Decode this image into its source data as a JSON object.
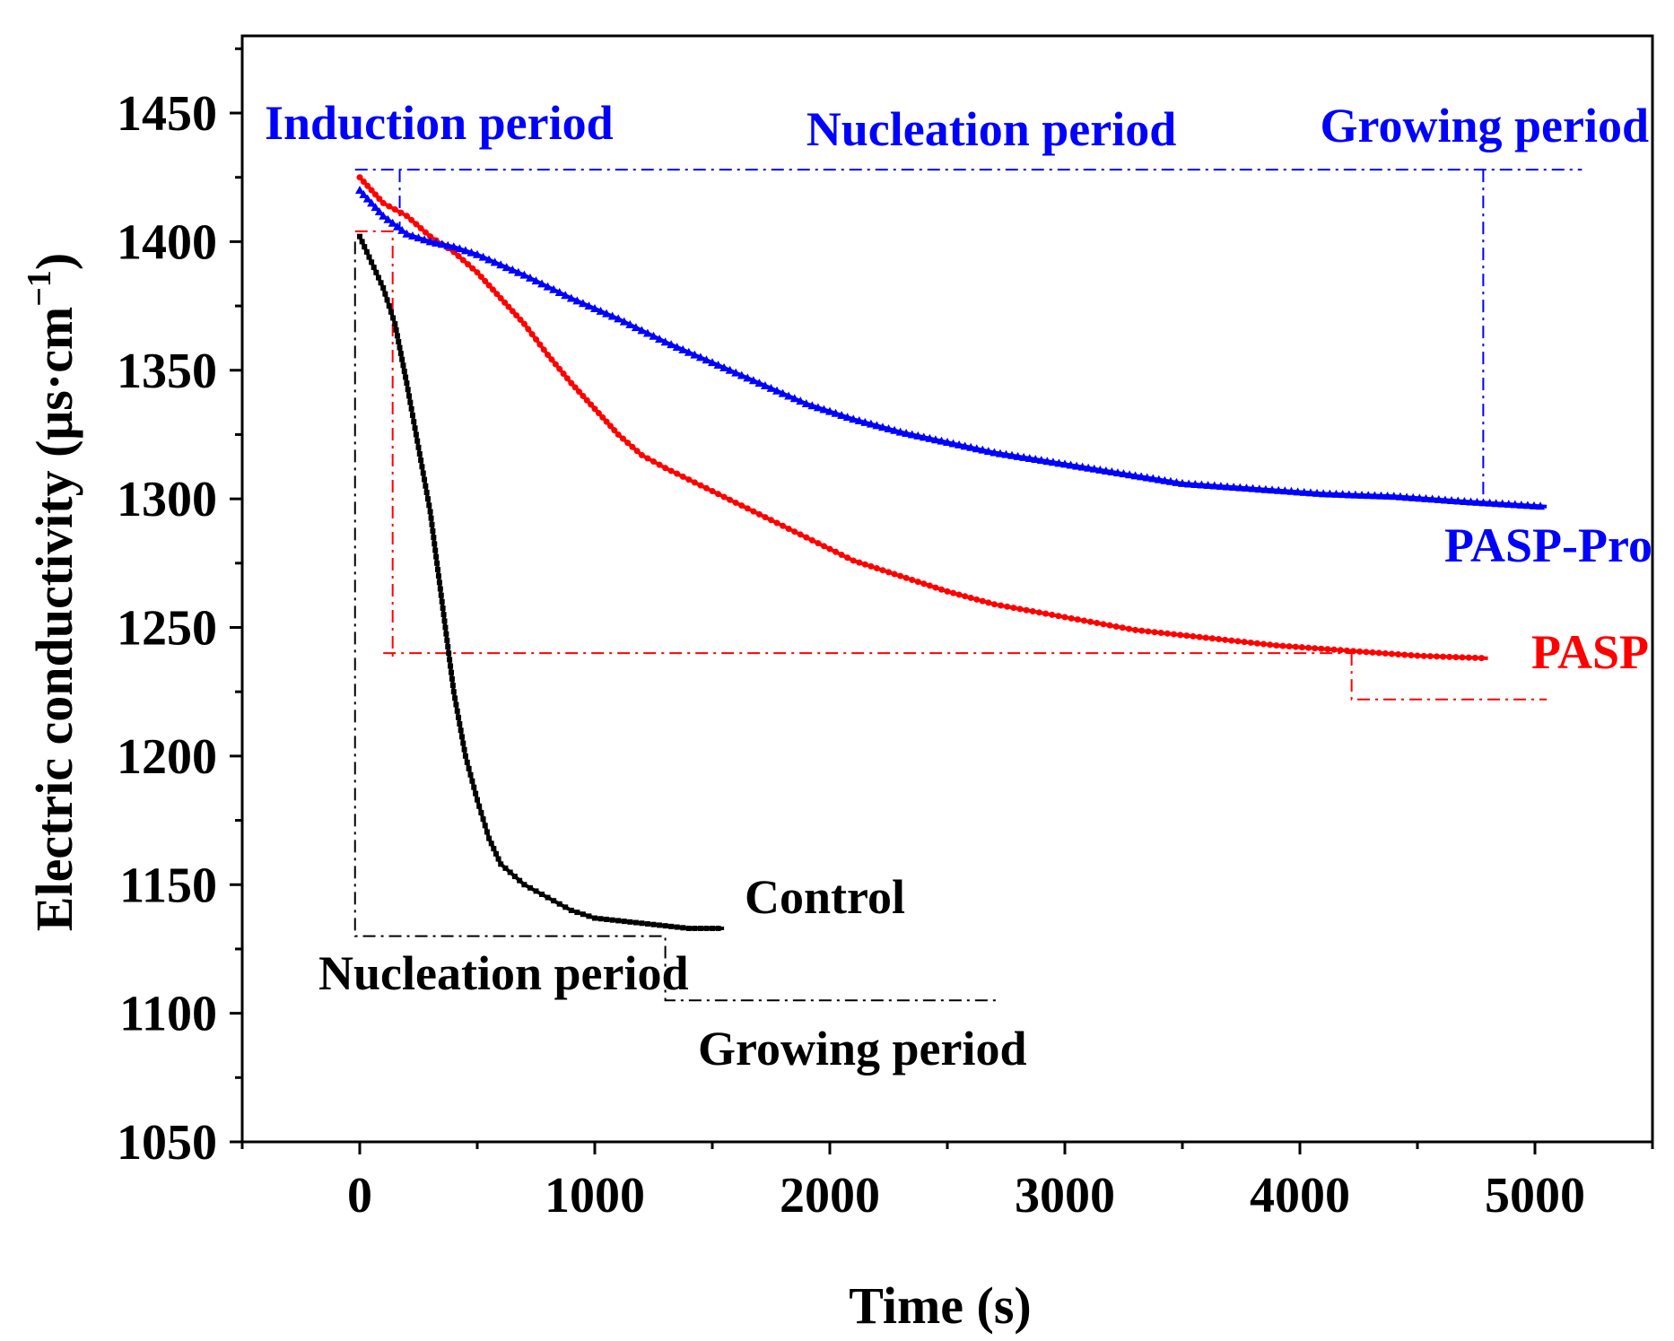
{
  "chart_data": {
    "type": "scatter",
    "title": "",
    "xlabel": "Time (s)",
    "ylabel": "Electric conductivity (μs·cm",
    "ylabel_exponent": "−1",
    "ylabel_suffix": ")",
    "xlim": [
      -500,
      5500
    ],
    "ylim": [
      1050,
      1480
    ],
    "x_ticks": [
      0,
      1000,
      2000,
      3000,
      4000,
      5000
    ],
    "x_tick_labels": [
      "0",
      "1000",
      "2000",
      "3000",
      "4000",
      "5000"
    ],
    "y_ticks": [
      1050,
      1100,
      1150,
      1200,
      1250,
      1300,
      1350,
      1400,
      1450
    ],
    "y_tick_labels": [
      "1050",
      "1100",
      "1150",
      "1200",
      "1250",
      "1300",
      "1350",
      "1400",
      "1450"
    ],
    "grid": false,
    "series": [
      {
        "name": "Control",
        "color": "#000000",
        "marker": "square",
        "x": [
          0,
          50,
          100,
          150,
          200,
          250,
          300,
          350,
          400,
          450,
          500,
          550,
          600,
          700,
          800,
          900,
          1000,
          1100,
          1200,
          1300,
          1400,
          1550
        ],
        "y": [
          1402,
          1392,
          1382,
          1368,
          1345,
          1320,
          1295,
          1260,
          1225,
          1200,
          1183,
          1168,
          1158,
          1150,
          1145,
          1140,
          1137,
          1136,
          1135,
          1134,
          1133,
          1133
        ]
      },
      {
        "name": "PASP",
        "color": "#ff0000",
        "marker": "circle",
        "x": [
          0,
          100,
          200,
          300,
          400,
          500,
          600,
          700,
          800,
          900,
          1000,
          1100,
          1200,
          1300,
          1500,
          1700,
          1900,
          2100,
          2300,
          2500,
          2700,
          3000,
          3300,
          3600,
          3900,
          4200,
          4500,
          4800
        ],
        "y": [
          1425,
          1415,
          1410,
          1402,
          1396,
          1388,
          1378,
          1368,
          1356,
          1345,
          1335,
          1325,
          1317,
          1312,
          1303,
          1294,
          1285,
          1276,
          1270,
          1264,
          1259,
          1254,
          1249,
          1246,
          1243,
          1241,
          1239,
          1238
        ]
      },
      {
        "name": "PASP-Pro",
        "color": "#0000ff",
        "marker": "triangle",
        "x": [
          0,
          100,
          200,
          300,
          400,
          500,
          700,
          900,
          1100,
          1300,
          1500,
          1700,
          1900,
          2100,
          2300,
          2500,
          2700,
          2900,
          3100,
          3300,
          3500,
          3800,
          4100,
          4400,
          4700,
          5050
        ],
        "y": [
          1420,
          1410,
          1403,
          1400,
          1398,
          1395,
          1387,
          1378,
          1370,
          1361,
          1353,
          1345,
          1337,
          1331,
          1326,
          1322,
          1318,
          1315,
          1312,
          1309,
          1306,
          1304,
          1302,
          1301,
          1299,
          1297
        ]
      }
    ],
    "annotations": [
      {
        "text": "Induction period",
        "color": "#0000ff"
      },
      {
        "text": "Nucleation period",
        "color": "#0000ff"
      },
      {
        "text": "Growing period",
        "color": "#0000ff"
      },
      {
        "text": "PASP-Pro",
        "color": "#0000ff"
      },
      {
        "text": "PASP",
        "color": "#ff0000"
      },
      {
        "text": "Control",
        "color": "#000000"
      },
      {
        "text": "Nucleation period",
        "color": "#000000"
      },
      {
        "text": "Growing period",
        "color": "#000000"
      }
    ],
    "guide_lines": [
      {
        "color": "#0000ff",
        "points": [
          [
            -20,
            1428
          ],
          [
            5200,
            1428
          ]
        ]
      },
      {
        "color": "#0000ff",
        "points": [
          [
            170,
            1428
          ],
          [
            170,
            1403
          ]
        ]
      },
      {
        "color": "#0000ff",
        "points": [
          [
            4780,
            1428
          ],
          [
            4780,
            1298
          ]
        ]
      },
      {
        "color": "#ff0000",
        "points": [
          [
            -20,
            1404
          ],
          [
            140,
            1404
          ],
          [
            140,
            1237
          ]
        ]
      },
      {
        "color": "#ff0000",
        "points": [
          [
            100,
            1240
          ],
          [
            4220,
            1240
          ]
        ]
      },
      {
        "color": "#ff0000",
        "points": [
          [
            4220,
            1240
          ],
          [
            4220,
            1222
          ],
          [
            5050,
            1222
          ]
        ]
      },
      {
        "color": "#000000",
        "points": [
          [
            -20,
            1400
          ],
          [
            -20,
            1130
          ],
          [
            1300,
            1130
          ],
          [
            1300,
            1105
          ],
          [
            2720,
            1105
          ]
        ]
      }
    ]
  }
}
